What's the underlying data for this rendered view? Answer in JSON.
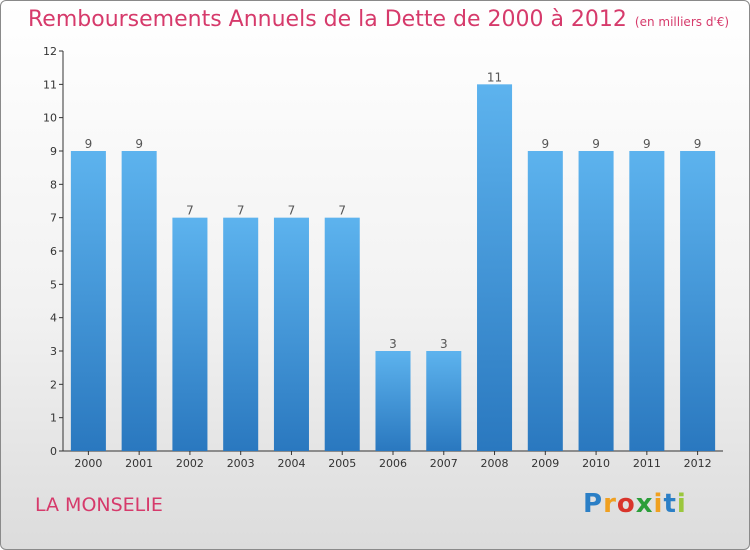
{
  "header": {
    "title": "Remboursements Annuels de la Dette de 2000 à 2012",
    "unit": "(en milliers d'€)"
  },
  "footer": {
    "place": "LA MONSELIE",
    "brand": "Proxiti"
  },
  "colors": {
    "bar": "#4a9de0",
    "text_accent": "#d63a6b"
  },
  "chart_data": {
    "type": "bar",
    "categories": [
      "2000",
      "2001",
      "2002",
      "2003",
      "2004",
      "2005",
      "2006",
      "2007",
      "2008",
      "2009",
      "2010",
      "2011",
      "2012"
    ],
    "values": [
      9,
      9,
      7,
      7,
      7,
      7,
      3,
      3,
      11,
      9,
      9,
      9,
      9
    ],
    "title": "Remboursements Annuels de la Dette de 2000 à 2012",
    "xlabel": "",
    "ylabel": "",
    "ylim": [
      0,
      12
    ],
    "yticks": [
      0,
      1,
      2,
      3,
      4,
      5,
      6,
      7,
      8,
      9,
      10,
      11,
      12
    ],
    "grid": false,
    "legend": "none"
  }
}
